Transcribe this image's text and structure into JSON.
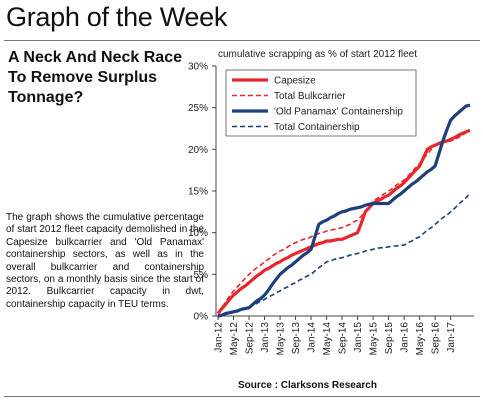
{
  "header": {
    "title": "Graph of the Week"
  },
  "article": {
    "heading": "A Neck And Neck Race To Remove Surplus Tonnage?",
    "body": "The graph shows the cumulative percentage of start 2012 fleet capacity demolished in the Capesize bulkcarrier and 'Old Panamax' containership sectors, as well as in the overall bulkcarrier and containership sectors, on a monthly basis since the start of 2012. Bulkcarrier capacity in dwt, containership capacity in TEU terms."
  },
  "chart_data": {
    "type": "line",
    "subtitle": "cumulative scrapping as % of start 2012 fleet",
    "source": "Source : Clarksons Research",
    "categories": [
      "Jan-12",
      null,
      null,
      null,
      "May-12",
      null,
      null,
      null,
      "Sep-12",
      null,
      null,
      null,
      "Jan-13",
      null,
      null,
      null,
      "May-13",
      null,
      null,
      null,
      "Sep-13",
      null,
      null,
      null,
      "Jan-14",
      null,
      null,
      null,
      "May-14",
      null,
      null,
      null,
      "Sep-14",
      null,
      null,
      null,
      "Jan-15",
      null,
      null,
      null,
      "May-15",
      null,
      null,
      null,
      "Sep-15",
      null,
      null,
      null,
      "Jan-16",
      null,
      null,
      null,
      "May-16",
      null,
      null,
      null,
      "Sep-16",
      null,
      null,
      null,
      "Jan-17",
      null,
      null,
      null,
      null,
      null
    ],
    "series": [
      {
        "name": "Capesize",
        "color": "#e8262b",
        "dashed": false,
        "values": [
          0.3,
          0.9,
          1.4,
          2.0,
          2.5,
          2.9,
          3.3,
          3.6,
          4.0,
          4.4,
          4.8,
          5.1,
          5.5,
          5.7,
          6.0,
          6.3,
          6.5,
          6.8,
          7.0,
          7.3,
          7.5,
          7.7,
          7.9,
          8.1,
          8.3,
          8.5,
          8.7,
          8.8,
          9.0,
          9.0,
          9.1,
          9.2,
          9.2,
          9.4,
          9.6,
          9.8,
          10.0,
          11.2,
          12.5,
          13.0,
          13.5,
          13.8,
          14.0,
          14.3,
          14.5,
          14.9,
          15.3,
          15.6,
          16.0,
          16.5,
          17.0,
          17.5,
          18.0,
          19.0,
          20.0,
          20.3,
          20.5,
          20.7,
          20.9,
          21.0,
          21.2,
          21.4,
          21.7,
          21.9,
          22.1,
          22.3
        ]
      },
      {
        "name": "Total Bulkcarrier",
        "color": "#e8262b",
        "dashed": true,
        "values": [
          0.3,
          1.0,
          1.7,
          2.4,
          3.0,
          3.5,
          4.0,
          4.5,
          5.0,
          5.4,
          5.8,
          6.1,
          6.5,
          6.8,
          7.2,
          7.5,
          7.8,
          8.0,
          8.3,
          8.6,
          8.8,
          9.0,
          9.2,
          9.3,
          9.5,
          9.7,
          9.9,
          10.0,
          10.2,
          10.3,
          10.4,
          10.5,
          10.6,
          10.8,
          11.0,
          11.3,
          11.5,
          12.0,
          12.6,
          13.2,
          13.8,
          14.1,
          14.4,
          14.7,
          15.0,
          15.3,
          15.7,
          16.0,
          16.3,
          16.8,
          17.3,
          17.8,
          18.3,
          18.9,
          19.4,
          20.0,
          20.5,
          20.6,
          20.8,
          20.9,
          21.0,
          21.2,
          21.4,
          21.7,
          22.0,
          22.2
        ]
      },
      {
        "name": "'Old Panamax' Containership",
        "color": "#1d3f7c",
        "dashed": false,
        "values": [
          0.0,
          0.1,
          0.3,
          0.4,
          0.5,
          0.6,
          0.8,
          0.9,
          1.0,
          1.4,
          1.8,
          2.1,
          2.5,
          3.1,
          3.8,
          4.4,
          5.0,
          5.4,
          5.8,
          6.1,
          6.5,
          6.9,
          7.3,
          7.6,
          8.0,
          9.5,
          11.0,
          11.3,
          11.5,
          11.8,
          12.0,
          12.3,
          12.5,
          12.6,
          12.8,
          12.9,
          13.0,
          13.1,
          13.3,
          13.4,
          13.5,
          13.5,
          13.5,
          13.5,
          13.5,
          13.9,
          14.3,
          14.6,
          15.0,
          15.4,
          15.8,
          16.1,
          16.5,
          16.9,
          17.3,
          17.6,
          18.0,
          19.5,
          21.0,
          22.3,
          23.5,
          24.0,
          24.4,
          24.8,
          25.2,
          25.3
        ]
      },
      {
        "name": "Total Containership",
        "color": "#1d3f7c",
        "dashed": true,
        "values": [
          0.0,
          0.1,
          0.3,
          0.4,
          0.5,
          0.6,
          0.8,
          0.9,
          1.0,
          1.3,
          1.5,
          1.8,
          2.0,
          2.3,
          2.5,
          2.8,
          3.0,
          3.3,
          3.5,
          3.8,
          4.0,
          4.3,
          4.5,
          4.8,
          5.0,
          5.4,
          5.8,
          6.1,
          6.5,
          6.6,
          6.8,
          6.9,
          7.0,
          7.1,
          7.3,
          7.4,
          7.5,
          7.6,
          7.8,
          7.9,
          8.0,
          8.1,
          8.2,
          8.2,
          8.3,
          8.4,
          8.4,
          8.5,
          8.5,
          8.8,
          9.0,
          9.3,
          9.5,
          9.9,
          10.3,
          10.6,
          11.0,
          11.4,
          11.8,
          12.1,
          12.5,
          12.9,
          13.4,
          13.8,
          14.2,
          14.7
        ]
      }
    ],
    "ylim": [
      0,
      30
    ],
    "yticks": [
      {
        "value": 0,
        "label": "0%"
      },
      {
        "value": 5,
        "label": "5%"
      },
      {
        "value": 10,
        "label": "10%"
      },
      {
        "value": 15,
        "label": "15%"
      },
      {
        "value": 20,
        "label": "20%"
      },
      {
        "value": 25,
        "label": "25%"
      },
      {
        "value": 30,
        "label": "30%"
      }
    ],
    "legend": "upper left",
    "grid": false
  }
}
